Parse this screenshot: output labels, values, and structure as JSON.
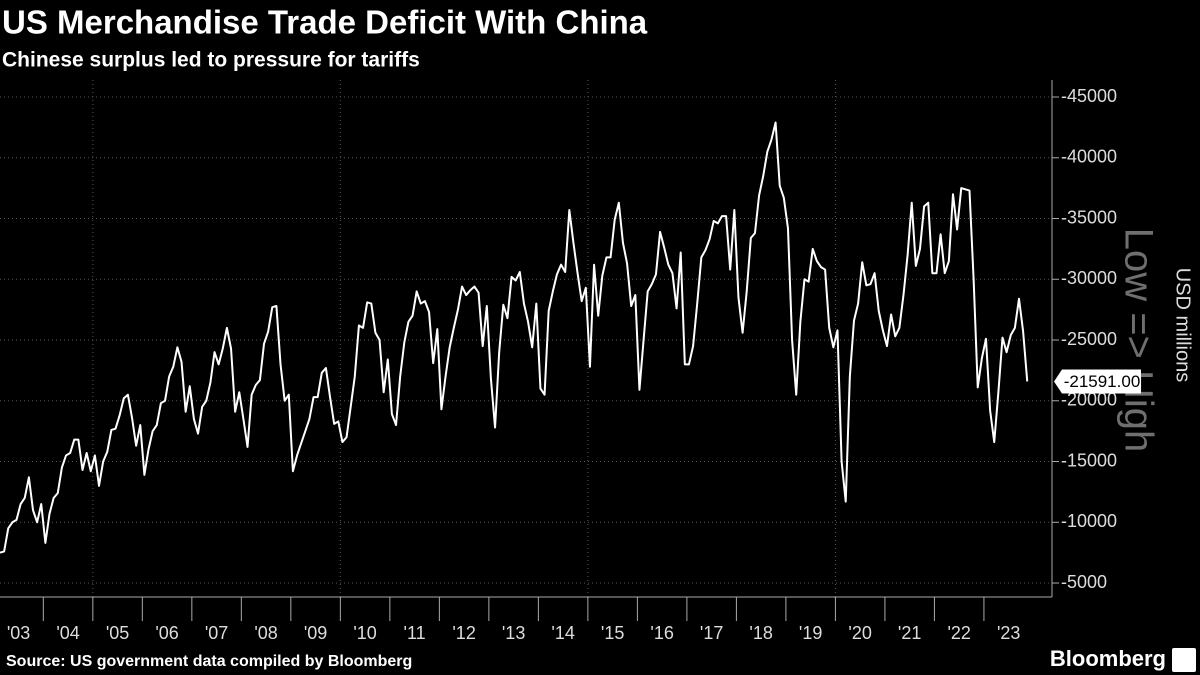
{
  "chart_data": {
    "type": "line",
    "title": "US Merchandise Trade Deficit With China",
    "subtitle": "Chinese surplus led to pressure for tariffs",
    "y_axis_label": "USD millions",
    "annotation": "Low => High",
    "source": "Source: US government data compiled by Bloomberg",
    "logo": "Bloomberg",
    "color": "#ffffff",
    "last_value_label": "-21591.00",
    "values": [
      -7500,
      -7600,
      -9500,
      -10000,
      -10200,
      -11500,
      -12000,
      -13700,
      -11000,
      -10000,
      -11500,
      -8300,
      -10700,
      -12000,
      -12400,
      -14500,
      -15500,
      -15700,
      -16800,
      -16800,
      -14300,
      -15700,
      -14200,
      -15500,
      -13000,
      -15000,
      -15800,
      -17600,
      -17700,
      -18800,
      -20200,
      -20500,
      -18600,
      -16300,
      -18000,
      -13900,
      -16000,
      -17500,
      -18000,
      -19800,
      -20000,
      -22000,
      -22800,
      -24400,
      -23200,
      -19100,
      -21200,
      -18500,
      -17300,
      -19500,
      -20000,
      -21500,
      -24000,
      -23000,
      -24300,
      -26000,
      -24300,
      -19100,
      -20700,
      -18500,
      -16200,
      -20500,
      -21300,
      -21700,
      -24700,
      -25700,
      -27700,
      -27800,
      -23000,
      -20000,
      -20500,
      -14200,
      -15500,
      -16500,
      -17500,
      -18500,
      -20300,
      -20300,
      -22300,
      -22700,
      -20300,
      -18100,
      -18300,
      -16600,
      -17000,
      -19500,
      -22000,
      -26200,
      -26000,
      -28100,
      -28000,
      -25600,
      -25000,
      -20700,
      -23400,
      -18900,
      -18000,
      -22000,
      -24800,
      -26500,
      -27000,
      -29000,
      -28000,
      -28200,
      -27300,
      -23100,
      -25900,
      -19300,
      -22000,
      -24400,
      -26000,
      -27500,
      -29400,
      -28700,
      -29100,
      -29400,
      -28900,
      -24500,
      -27800,
      -21800,
      -17800,
      -24000,
      -27900,
      -26800,
      -30200,
      -29900,
      -30600,
      -28000,
      -26500,
      -24400,
      -28000,
      -21000,
      -20500,
      -27400,
      -29000,
      -30400,
      -31200,
      -30600,
      -35700,
      -33000,
      -30500,
      -28200,
      -29300,
      -22800,
      -31200,
      -27000,
      -30300,
      -31800,
      -31800,
      -34900,
      -36300,
      -33000,
      -31300,
      -27800,
      -28700,
      -20900,
      -25000,
      -29000,
      -29600,
      -30400,
      -33900,
      -32600,
      -31200,
      -30500,
      -27600,
      -32200,
      -23000,
      -23000,
      -24500,
      -28000,
      -31800,
      -32400,
      -33300,
      -34800,
      -34600,
      -35200,
      -35200,
      -30800,
      -35700,
      -28500,
      -25600,
      -29000,
      -33400,
      -33800,
      -36900,
      -38500,
      -40500,
      -41500,
      -42900,
      -37700,
      -36700,
      -34200,
      -25000,
      -20500,
      -26500,
      -30000,
      -29800,
      -32500,
      -31500,
      -31000,
      -30800,
      -26000,
      -24400,
      -25800,
      -15000,
      -11700,
      -22000,
      -26600,
      -28000,
      -31400,
      -29500,
      -29600,
      -30500,
      -27400,
      -25800,
      -24500,
      -27100,
      -25300,
      -26000,
      -28700,
      -32000,
      -36300,
      -31100,
      -32500,
      -36000,
      -36300,
      -30500,
      -30500,
      -33700,
      -30500,
      -31500,
      -37000,
      -34100,
      -37500,
      -37400,
      -37300,
      -30000,
      -21100,
      -23500,
      -25100,
      -19200,
      -16600,
      -20700,
      -25200,
      -24000,
      -25400,
      -26000,
      -28400,
      -25700,
      -21591
    ],
    "xlim": [
      0,
      255
    ],
    "xticks": [
      {
        "value": 4.5,
        "label": "'03"
      },
      {
        "value": 16.5,
        "label": "'04"
      },
      {
        "value": 28.5,
        "label": "'05"
      },
      {
        "value": 40.5,
        "label": "'06"
      },
      {
        "value": 52.5,
        "label": "'07"
      },
      {
        "value": 64.5,
        "label": "'08"
      },
      {
        "value": 76.5,
        "label": "'09"
      },
      {
        "value": 88.5,
        "label": "'10"
      },
      {
        "value": 100.5,
        "label": "'11"
      },
      {
        "value": 112.5,
        "label": "'12"
      },
      {
        "value": 124.5,
        "label": "'13"
      },
      {
        "value": 136.5,
        "label": "'14"
      },
      {
        "value": 148.5,
        "label": "'15"
      },
      {
        "value": 160.5,
        "label": "'16"
      },
      {
        "value": 172.5,
        "label": "'17"
      },
      {
        "value": 184.5,
        "label": "'18"
      },
      {
        "value": 196.5,
        "label": "'19"
      },
      {
        "value": 208.5,
        "label": "'20"
      },
      {
        "value": 220.5,
        "label": "'21"
      },
      {
        "value": 232.5,
        "label": "'22"
      },
      {
        "value": 244.5,
        "label": "'23"
      }
    ],
    "xgrid": [
      22.5,
      82.5,
      142.5,
      202.5
    ],
    "ylim": [
      -3850,
      -46400
    ],
    "yticks": [
      -45000,
      -40000,
      -35000,
      -30000,
      -25000,
      -20000,
      -15000,
      -10000,
      -5000
    ],
    "grid": true
  }
}
